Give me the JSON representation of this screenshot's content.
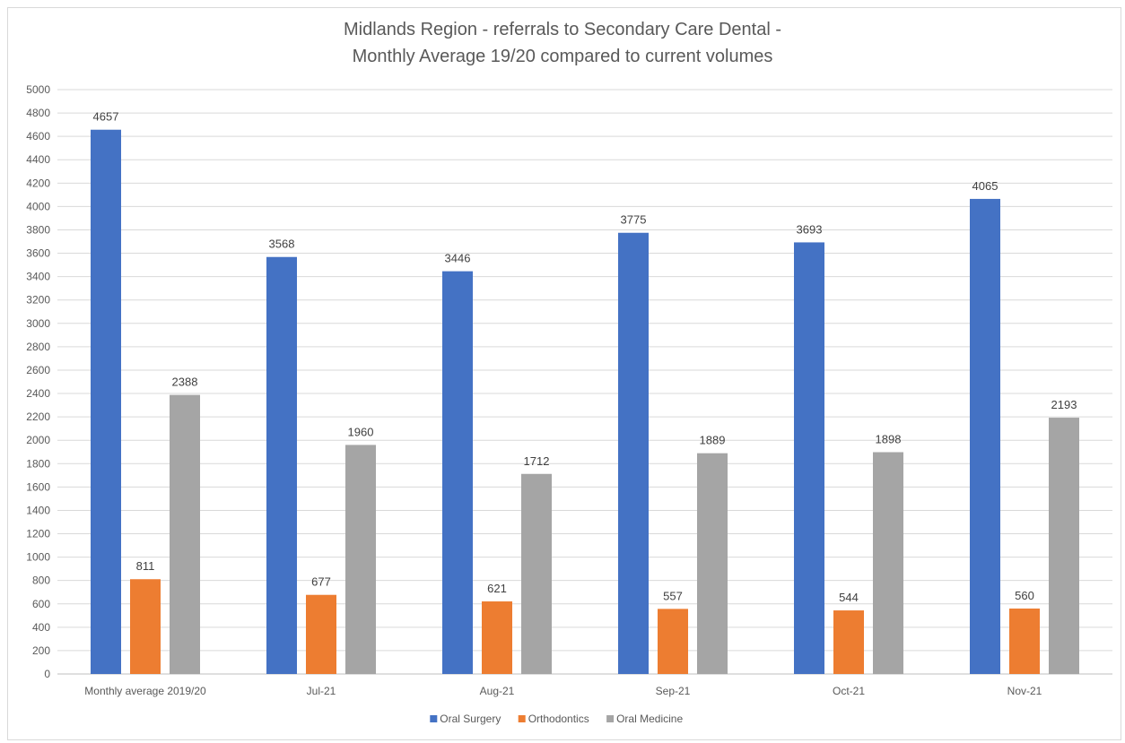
{
  "chart_data": {
    "type": "bar",
    "title_line1": "Midlands Region - referrals to Secondary Care Dental -",
    "title_line2": "Monthly Average 19/20 compared to current volumes",
    "categories": [
      "Monthly average 2019/20",
      "Jul-21",
      "Aug-21",
      "Sep-21",
      "Oct-21",
      "Nov-21"
    ],
    "series": [
      {
        "name": "Oral Surgery",
        "color": "#4472c4",
        "values": [
          4657,
          3568,
          3446,
          3775,
          3693,
          4065
        ]
      },
      {
        "name": "Orthodontics",
        "color": "#ed7d31",
        "values": [
          811,
          677,
          621,
          557,
          544,
          560
        ]
      },
      {
        "name": "Oral Medicine",
        "color": "#a5a5a5",
        "values": [
          2388,
          1960,
          1712,
          1889,
          1898,
          2193
        ]
      }
    ],
    "ylim": [
      0,
      5000
    ],
    "ytick_step": 200,
    "grid": true,
    "legend_position": "bottom"
  }
}
